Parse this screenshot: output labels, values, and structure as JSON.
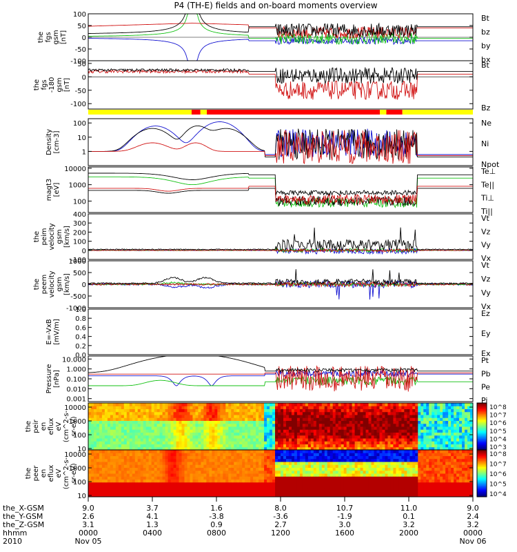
{
  "chart_data": {
    "type": "line",
    "title": "P4 (TH-E) fields and on-board moments overview",
    "date_labels": [
      "Nov 05",
      "Nov 06"
    ],
    "year_label": "2010",
    "panels": [
      {
        "key": "fgs",
        "ylabel": [
          "the",
          "fgs",
          "gsm",
          "[nT]"
        ],
        "ylim": [
          -100,
          100
        ],
        "ticks": [
          -100,
          -50,
          0,
          50,
          100
        ],
        "scale": "linear",
        "legend": [
          {
            "label": "Bt",
            "color": "#000000"
          },
          {
            "label": "bz",
            "color": "#d01010"
          },
          {
            "label": "by",
            "color": "#10c010"
          },
          {
            "label": "bx",
            "color": "#1010d0"
          }
        ]
      },
      {
        "key": "fgs_ang",
        "ylabel": [
          "the",
          "fgs",
          "-180",
          "gsm",
          "[nT]"
        ],
        "ylim": [
          -120,
          60
        ],
        "ticks": [
          -100,
          -50,
          0,
          50
        ],
        "scale": "linear",
        "legend": [
          {
            "label": "Bt",
            "color": "#000000"
          },
          {
            "label": "Bz",
            "color": "#d01010"
          }
        ]
      },
      {
        "key": "density",
        "ylabel": [
          "Density",
          "[cm-3]"
        ],
        "ylim": [
          0.1,
          200
        ],
        "ticks": [
          1,
          10,
          100
        ],
        "tick_labels": [
          "1",
          "10",
          "100"
        ],
        "scale": "log",
        "legend": [
          {
            "label": "Ne",
            "color": "#d01010"
          },
          {
            "label": "Ni",
            "color": "#000000"
          },
          {
            "label": "Npot",
            "color": "#1010d0"
          }
        ]
      },
      {
        "key": "temperature",
        "ylabel": [
          "magt3",
          "[eV]"
        ],
        "ylim": [
          20,
          12000
        ],
        "ticks": [
          100,
          1000,
          10000
        ],
        "tick_labels": [
          "100",
          "1000",
          "10000"
        ],
        "scale": "log",
        "legend": [
          {
            "label": "Te⊥",
            "color": "#d01010"
          },
          {
            "label": "Te||",
            "color": "#000000"
          },
          {
            "label": "Ti⊥",
            "color": "#000000"
          },
          {
            "label": "Ti||",
            "color": "#10c010"
          }
        ]
      },
      {
        "key": "peim",
        "ylabel": [
          "the",
          "peim",
          "velocity",
          "gsm",
          "[km/s]"
        ],
        "ylim": [
          -100,
          400
        ],
        "ticks": [
          -100,
          0,
          100,
          200,
          300,
          400
        ],
        "scale": "linear",
        "legend": [
          {
            "label": "Vt",
            "color": "#000000"
          },
          {
            "label": "Vz",
            "color": "#d01010"
          },
          {
            "label": "Vy",
            "color": "#10c010"
          },
          {
            "label": "Vx",
            "color": "#1010d0"
          }
        ]
      },
      {
        "key": "peem",
        "ylabel": [
          "the",
          "peem",
          "velocity",
          "gsm",
          "[km/s]"
        ],
        "ylim": [
          -1000,
          1000
        ],
        "ticks": [
          -1000,
          -500,
          0,
          500,
          1000
        ],
        "scale": "linear",
        "legend": [
          {
            "label": "Vt",
            "color": "#000000"
          },
          {
            "label": "Vz",
            "color": "#d01010"
          },
          {
            "label": "Vy",
            "color": "#10c010"
          },
          {
            "label": "Vx",
            "color": "#1010d0"
          }
        ]
      },
      {
        "key": "efield",
        "ylabel": [
          "E=-VxB",
          "[mV/m]"
        ],
        "ylim": [
          0,
          1
        ],
        "ticks": [
          0,
          0.2,
          0.4,
          0.6,
          0.8,
          1.0
        ],
        "tick_labels": [
          "0.0",
          "0.2",
          "0.4",
          "0.6",
          "0.8",
          "1.0"
        ],
        "scale": "linear",
        "legend": [
          {
            "label": "Ez",
            "color": "#d01010"
          },
          {
            "label": "Ey",
            "color": "#10c010"
          },
          {
            "label": "Ex",
            "color": "#1010d0"
          }
        ]
      },
      {
        "key": "pressure",
        "ylabel": [
          "Pressure",
          "[nPa]"
        ],
        "ylim": [
          0.0005,
          20
        ],
        "ticks": [
          0.001,
          0.01,
          0.1,
          1,
          10
        ],
        "tick_labels": [
          "0.001",
          "0.010",
          "0.100",
          "1.000",
          "10.000"
        ],
        "scale": "log",
        "legend": [
          {
            "label": "Pt",
            "color": "#000000"
          },
          {
            "label": "Pb",
            "color": "#d01010"
          },
          {
            "label": "Pe",
            "color": "#10c010"
          },
          {
            "label": "Pi",
            "color": "#1010d0"
          }
        ]
      },
      {
        "key": "peir_flux",
        "ylabel": [
          "the",
          "peir",
          "en",
          "eflux",
          "eV",
          "(cm^2-s-",
          "sr-eV)"
        ],
        "ylim": [
          8,
          20000
        ],
        "ticks": [
          10,
          100,
          1000,
          10000
        ],
        "tick_labels": [
          "10",
          "100",
          "1000",
          "10000"
        ],
        "scale": "log",
        "colorbar_labels": [
          "10^8",
          "10^7",
          "10^6",
          "10^5",
          "10^4",
          "10^3"
        ]
      },
      {
        "key": "peer_flux",
        "ylabel": [
          "the",
          "peer",
          "en",
          "eflux",
          "eV",
          "(cm^2-s-",
          "sr-eV)"
        ],
        "ylim": [
          8,
          20000
        ],
        "ticks": [
          10,
          100,
          1000,
          10000
        ],
        "tick_labels": [
          "10",
          "100",
          "1000",
          "10000"
        ],
        "scale": "log",
        "colorbar_labels": [
          "10^8",
          "10^7",
          "10^6",
          "10^5",
          "10^4"
        ]
      }
    ],
    "x_axis": {
      "row_labels": [
        "the_X-GSM",
        "the_Y-GSM",
        "the_Z-GSM",
        "hhmm",
        "2010"
      ],
      "columns": [
        {
          "hour": 0,
          "X": "9.0",
          "Y": "2.6",
          "Z": "3.1",
          "hhmm": "0000"
        },
        {
          "hour": 4,
          "X": "3.7",
          "Y": "4.1",
          "Z": "1.3",
          "hhmm": "0400"
        },
        {
          "hour": 8,
          "X": "1.6",
          "Y": "-3.8",
          "Z": "0.9",
          "hhmm": "0800"
        },
        {
          "hour": 12,
          "X": "8.0",
          "Y": "-3.6",
          "Z": "2.7",
          "hhmm": "1200"
        },
        {
          "hour": 16,
          "X": "10.7",
          "Y": "-1.9",
          "Z": "3.0",
          "hhmm": "1600"
        },
        {
          "hour": 20,
          "X": "11.0",
          "Y": "0.1",
          "Z": "3.2",
          "hhmm": "2000"
        },
        {
          "hour": 24,
          "X": "9.0",
          "Y": "2.4",
          "Z": "3.2",
          "hhmm": "0000"
        }
      ]
    },
    "mode_bar": [
      {
        "from": 0,
        "to": 6.45,
        "color": "#ffff00"
      },
      {
        "from": 6.45,
        "to": 7.0,
        "color": "#ff0000"
      },
      {
        "from": 7.0,
        "to": 7.4,
        "color": "#ffff00"
      },
      {
        "from": 7.4,
        "to": 18.2,
        "color": "#ff0000"
      },
      {
        "from": 18.2,
        "to": 18.6,
        "color": "#ffff00"
      },
      {
        "from": 18.6,
        "to": 19.6,
        "color": "#ff0000"
      },
      {
        "from": 19.6,
        "to": 24,
        "color": "#ffff00"
      }
    ]
  }
}
